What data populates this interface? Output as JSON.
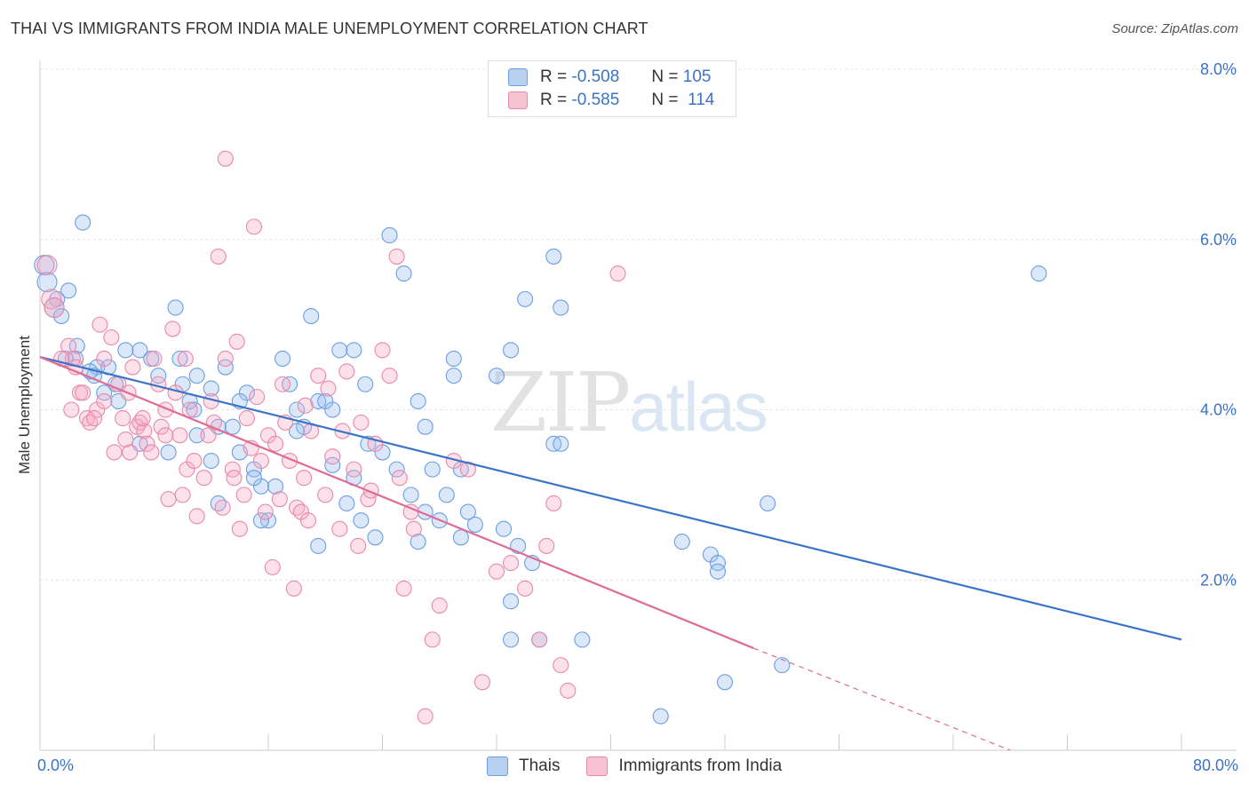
{
  "header": {
    "title": "THAI VS IMMIGRANTS FROM INDIA MALE UNEMPLOYMENT CORRELATION CHART",
    "source": "Source: ZipAtlas.com"
  },
  "watermark": {
    "zip": "ZIP",
    "atlas": "atlas"
  },
  "legend": {
    "r_label": "R =",
    "n_label": "N =",
    "rows": [
      {
        "r": "-0.508",
        "n": "105",
        "fill": "#b8d0f0",
        "stroke": "#6d9ee0"
      },
      {
        "r": "-0.585",
        "n": "114",
        "fill": "#f7c2d2",
        "stroke": "#e889a8"
      }
    ]
  },
  "bottom_legend": [
    {
      "label": "Thais",
      "fill": "#b8d0f0",
      "stroke": "#6d9ee0"
    },
    {
      "label": "Immigrants from India",
      "fill": "#f7c2d2",
      "stroke": "#e889a8"
    }
  ],
  "chart_data": {
    "type": "scatter",
    "ylabel": "Male Unemployment",
    "x_tick_labels": {
      "min": "0.0%",
      "max": "80.0%"
    },
    "y_tick_labels": [
      "2.0%",
      "4.0%",
      "6.0%",
      "8.0%"
    ],
    "xlim": [
      0,
      80
    ],
    "ylim": [
      0,
      8
    ],
    "grid": true,
    "series": [
      {
        "name": "Thais",
        "color": "#3b73c8",
        "point_fill": "rgba(150,190,240,0.35)",
        "point_stroke": "#6d9ee0",
        "trend": {
          "x0": 0,
          "y0": 4.62,
          "x1": 80,
          "y1": 1.3
        },
        "points": [
          [
            0.3,
            5.7
          ],
          [
            0.5,
            5.5
          ],
          [
            1.2,
            5.3
          ],
          [
            1.0,
            5.2
          ],
          [
            1.5,
            5.1
          ],
          [
            2.0,
            5.4
          ],
          [
            3.0,
            6.2
          ],
          [
            2.6,
            4.75
          ],
          [
            2.5,
            4.6
          ],
          [
            4.0,
            4.5
          ],
          [
            4.8,
            4.5
          ],
          [
            3.8,
            4.4
          ],
          [
            5.3,
            4.3
          ],
          [
            4.5,
            4.2
          ],
          [
            5.5,
            4.1
          ],
          [
            7.0,
            4.7
          ],
          [
            7.8,
            4.6
          ],
          [
            8.3,
            4.4
          ],
          [
            9.5,
            5.2
          ],
          [
            9.8,
            4.6
          ],
          [
            10.0,
            4.3
          ],
          [
            10.5,
            4.1
          ],
          [
            11.0,
            3.7
          ],
          [
            10.8,
            4.0
          ],
          [
            12.0,
            4.25
          ],
          [
            12.5,
            3.8
          ],
          [
            13.0,
            4.5
          ],
          [
            13.5,
            3.8
          ],
          [
            14.5,
            4.2
          ],
          [
            14.0,
            4.1
          ],
          [
            12.0,
            3.4
          ],
          [
            12.5,
            2.9
          ],
          [
            14.0,
            3.5
          ],
          [
            15.0,
            3.3
          ],
          [
            15.5,
            3.1
          ],
          [
            16.0,
            2.7
          ],
          [
            15.0,
            3.2
          ],
          [
            17.0,
            4.6
          ],
          [
            17.5,
            4.3
          ],
          [
            18.0,
            4.0
          ],
          [
            18.5,
            3.8
          ],
          [
            19.0,
            5.1
          ],
          [
            19.5,
            4.1
          ],
          [
            20.0,
            4.1
          ],
          [
            20.5,
            4.0
          ],
          [
            21.0,
            4.7
          ],
          [
            22.0,
            4.7
          ],
          [
            22.8,
            4.3
          ],
          [
            23.0,
            3.6
          ],
          [
            22.0,
            3.2
          ],
          [
            22.5,
            2.7
          ],
          [
            21.5,
            2.9
          ],
          [
            24.0,
            3.5
          ],
          [
            25.0,
            3.3
          ],
          [
            26.0,
            3.0
          ],
          [
            23.5,
            2.5
          ],
          [
            24.5,
            6.05
          ],
          [
            25.5,
            5.6
          ],
          [
            26.5,
            4.1
          ],
          [
            27.0,
            3.8
          ],
          [
            27.5,
            3.3
          ],
          [
            27.0,
            2.8
          ],
          [
            28.5,
            3.0
          ],
          [
            29.0,
            4.6
          ],
          [
            29.0,
            4.4
          ],
          [
            29.5,
            3.3
          ],
          [
            30.0,
            2.8
          ],
          [
            29.5,
            2.5
          ],
          [
            30.5,
            2.65
          ],
          [
            32.0,
            4.4
          ],
          [
            32.5,
            2.6
          ],
          [
            33.0,
            4.7
          ],
          [
            34.0,
            5.3
          ],
          [
            33.5,
            2.4
          ],
          [
            34.5,
            2.2
          ],
          [
            36.0,
            3.6
          ],
          [
            36.5,
            3.6
          ],
          [
            36.0,
            5.8
          ],
          [
            36.5,
            5.2
          ],
          [
            33.0,
            1.75
          ],
          [
            33.0,
            1.3
          ],
          [
            35.0,
            1.3
          ],
          [
            38.0,
            1.3
          ],
          [
            45.0,
            2.45
          ],
          [
            47.0,
            2.3
          ],
          [
            47.5,
            2.2
          ],
          [
            47.5,
            2.1
          ],
          [
            51.0,
            2.9
          ],
          [
            52.0,
            1.0
          ],
          [
            48.0,
            0.8
          ],
          [
            43.5,
            0.4
          ],
          [
            70.0,
            5.6
          ],
          [
            19.5,
            2.4
          ],
          [
            15.5,
            2.7
          ],
          [
            11.0,
            4.4
          ],
          [
            6.0,
            4.7
          ],
          [
            3.5,
            4.45
          ],
          [
            1.8,
            4.6
          ],
          [
            9.0,
            3.5
          ],
          [
            7.0,
            3.6
          ],
          [
            16.5,
            3.1
          ],
          [
            18.0,
            3.75
          ],
          [
            20.5,
            3.35
          ],
          [
            26.5,
            2.45
          ],
          [
            28.0,
            2.7
          ]
        ]
      },
      {
        "name": "Immigrants from India",
        "color": "#e06b94",
        "point_fill": "rgba(245,170,195,0.35)",
        "point_stroke": "#e889a8",
        "trend": {
          "x0": 0,
          "y0": 4.62,
          "x1": 50,
          "y1": 1.2,
          "dash_to": {
            "x": 68,
            "y": 0.0
          }
        },
        "points": [
          [
            0.5,
            5.7
          ],
          [
            0.8,
            5.3
          ],
          [
            1.0,
            5.2
          ],
          [
            2.0,
            4.75
          ],
          [
            2.3,
            4.6
          ],
          [
            2.5,
            4.5
          ],
          [
            2.8,
            4.2
          ],
          [
            3.0,
            4.2
          ],
          [
            3.3,
            3.9
          ],
          [
            3.5,
            3.85
          ],
          [
            4.0,
            4.0
          ],
          [
            4.2,
            5.0
          ],
          [
            4.5,
            4.1
          ],
          [
            5.0,
            4.85
          ],
          [
            5.5,
            4.3
          ],
          [
            5.8,
            3.9
          ],
          [
            6.0,
            3.65
          ],
          [
            6.3,
            3.5
          ],
          [
            6.5,
            4.5
          ],
          [
            6.8,
            3.8
          ],
          [
            7.0,
            3.85
          ],
          [
            7.3,
            3.75
          ],
          [
            7.5,
            3.6
          ],
          [
            7.8,
            3.5
          ],
          [
            8.0,
            4.6
          ],
          [
            8.3,
            4.3
          ],
          [
            8.5,
            3.8
          ],
          [
            8.8,
            3.7
          ],
          [
            9.0,
            2.95
          ],
          [
            9.3,
            4.95
          ],
          [
            9.5,
            4.2
          ],
          [
            9.8,
            3.7
          ],
          [
            10.0,
            3.0
          ],
          [
            10.3,
            3.3
          ],
          [
            10.5,
            4.0
          ],
          [
            10.8,
            3.4
          ],
          [
            11.0,
            2.75
          ],
          [
            11.5,
            3.2
          ],
          [
            12.0,
            4.1
          ],
          [
            12.5,
            5.8
          ],
          [
            12.8,
            2.85
          ],
          [
            13.0,
            4.6
          ],
          [
            13.5,
            3.3
          ],
          [
            13.8,
            4.8
          ],
          [
            14.0,
            2.6
          ],
          [
            14.3,
            3.0
          ],
          [
            14.5,
            3.9
          ],
          [
            14.8,
            3.55
          ],
          [
            15.0,
            6.15
          ],
          [
            15.5,
            3.4
          ],
          [
            15.8,
            2.8
          ],
          [
            16.0,
            3.7
          ],
          [
            16.3,
            2.15
          ],
          [
            16.5,
            3.6
          ],
          [
            16.8,
            2.95
          ],
          [
            17.0,
            4.3
          ],
          [
            17.5,
            3.4
          ],
          [
            17.8,
            1.9
          ],
          [
            18.0,
            2.85
          ],
          [
            18.3,
            2.8
          ],
          [
            18.5,
            3.2
          ],
          [
            18.8,
            2.7
          ],
          [
            19.0,
            3.75
          ],
          [
            19.5,
            4.4
          ],
          [
            20.0,
            3.0
          ],
          [
            20.5,
            3.45
          ],
          [
            21.0,
            2.6
          ],
          [
            21.5,
            4.45
          ],
          [
            22.0,
            3.3
          ],
          [
            22.3,
            2.4
          ],
          [
            22.5,
            3.85
          ],
          [
            23.0,
            2.95
          ],
          [
            23.5,
            3.6
          ],
          [
            24.0,
            4.7
          ],
          [
            24.5,
            4.4
          ],
          [
            25.0,
            5.8
          ],
          [
            25.5,
            1.9
          ],
          [
            26.0,
            2.8
          ],
          [
            27.0,
            0.4
          ],
          [
            27.5,
            1.3
          ],
          [
            28.0,
            1.7
          ],
          [
            29.0,
            3.4
          ],
          [
            30.0,
            3.3
          ],
          [
            31.0,
            0.8
          ],
          [
            32.0,
            2.1
          ],
          [
            33.0,
            2.2
          ],
          [
            34.0,
            1.9
          ],
          [
            35.0,
            1.3
          ],
          [
            35.5,
            2.4
          ],
          [
            36.0,
            2.9
          ],
          [
            36.5,
            1.0
          ],
          [
            37.0,
            0.7
          ],
          [
            40.5,
            5.6
          ],
          [
            13.0,
            6.95
          ],
          [
            11.8,
            3.7
          ],
          [
            7.2,
            3.9
          ],
          [
            5.2,
            3.5
          ],
          [
            3.8,
            3.9
          ],
          [
            1.5,
            4.6
          ],
          [
            2.2,
            4.0
          ],
          [
            4.5,
            4.6
          ],
          [
            6.2,
            4.2
          ],
          [
            8.8,
            4.0
          ],
          [
            10.2,
            4.6
          ],
          [
            12.2,
            3.85
          ],
          [
            13.6,
            3.2
          ],
          [
            15.2,
            4.15
          ],
          [
            17.2,
            3.85
          ],
          [
            18.6,
            4.05
          ],
          [
            20.2,
            4.25
          ],
          [
            21.2,
            3.75
          ],
          [
            23.2,
            3.05
          ],
          [
            25.2,
            3.2
          ],
          [
            26.2,
            2.6
          ]
        ]
      }
    ]
  }
}
